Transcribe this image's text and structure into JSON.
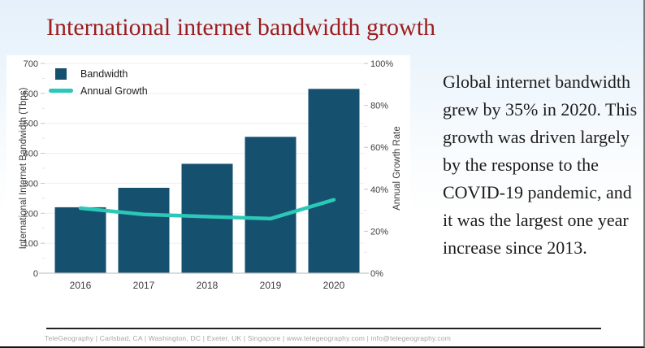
{
  "slide": {
    "title": "International internet bandwidth growth",
    "body_text": "Global internet bandwidth grew by 35% in 2020. This growth was driven largely by the response to the COVID-19 pandemic, and it was the largest one year increase since 2013.",
    "footer": "TeleGeography | Carlsbad, CA | Washington, DC | Exeter, UK | Singapore | www.telegeography.com | info@telegeography.com"
  },
  "colors": {
    "title_red": "#9e1c1c",
    "bar": "#15506f",
    "line": "#2bc8b8",
    "grid": "#efefef",
    "axis": "#c6c6c6",
    "minor_tick": "#e2e2e2",
    "tick_text": "#3c3c3c",
    "body_text": "#1c1c1c",
    "footer_text": "#a6a6a6",
    "footer_rule": "#232323",
    "panel_bg": "#ffffff"
  },
  "chart_data": {
    "type": "bar",
    "subtype": "combo-bar-line-dual-axis",
    "categories": [
      "2016",
      "2017",
      "2018",
      "2019",
      "2020"
    ],
    "series": [
      {
        "name": "Bandwidth",
        "type": "bar",
        "axis": "left",
        "values": [
          220,
          285,
          365,
          455,
          615
        ]
      },
      {
        "name": "Annual Growth",
        "type": "line",
        "axis": "right",
        "values": [
          31,
          28,
          27,
          26,
          35
        ]
      }
    ],
    "left_axis": {
      "label": "International Internet Bandwidth (Tbps)",
      "min": 0,
      "max": 700,
      "step": 100,
      "minor_step": 50
    },
    "right_axis": {
      "label": "Annual Growth Rate",
      "min": 0,
      "max": 100,
      "step": 20,
      "minor_step": 10,
      "suffix": "%"
    },
    "legend_position": "top-left",
    "grid": true
  }
}
